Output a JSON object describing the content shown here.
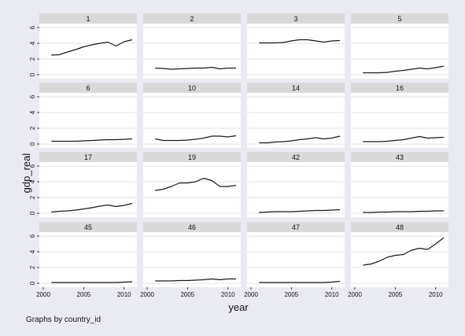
{
  "chart_data": {
    "type": "line",
    "layout": "small-multiples",
    "xlabel": "year",
    "ylabel": "gdp_real",
    "note": "Graphs by country_id",
    "xlim": [
      2000,
      2011
    ],
    "ylim": [
      0,
      6
    ],
    "x_ticks": [
      2000,
      2005,
      2010
    ],
    "y_ticks": [
      0,
      2,
      4,
      6
    ],
    "x": [
      2001,
      2002,
      2003,
      2004,
      2005,
      2006,
      2007,
      2008,
      2009,
      2010,
      2011
    ],
    "panels": [
      {
        "label": "1",
        "values": [
          2.5,
          2.55,
          2.9,
          3.2,
          3.55,
          3.8,
          4.0,
          4.15,
          3.65,
          4.2,
          4.45
        ]
      },
      {
        "label": "2",
        "values": [
          0.85,
          0.8,
          0.7,
          0.75,
          0.8,
          0.85,
          0.85,
          0.95,
          0.75,
          0.85,
          0.85
        ]
      },
      {
        "label": "3",
        "values": [
          4.05,
          4.05,
          4.05,
          4.1,
          4.3,
          4.45,
          4.45,
          4.3,
          4.15,
          4.3,
          4.35
        ]
      },
      {
        "label": "5",
        "values": [
          0.25,
          0.25,
          0.25,
          0.3,
          0.45,
          0.55,
          0.7,
          0.85,
          0.75,
          0.9,
          1.1
        ]
      },
      {
        "label": "6",
        "values": [
          0.35,
          0.35,
          0.35,
          0.35,
          0.4,
          0.45,
          0.5,
          0.55,
          0.55,
          0.6,
          0.65
        ]
      },
      {
        "label": "10",
        "values": [
          0.65,
          0.45,
          0.45,
          0.45,
          0.5,
          0.6,
          0.75,
          1.0,
          1.0,
          0.9,
          1.05
        ]
      },
      {
        "label": "14",
        "values": [
          0.15,
          0.15,
          0.25,
          0.3,
          0.4,
          0.55,
          0.65,
          0.8,
          0.65,
          0.75,
          1.0
        ]
      },
      {
        "label": "16",
        "values": [
          0.3,
          0.3,
          0.3,
          0.35,
          0.45,
          0.55,
          0.75,
          0.95,
          0.75,
          0.8,
          0.85
        ]
      },
      {
        "label": "17",
        "values": [
          0.15,
          0.25,
          0.3,
          0.4,
          0.55,
          0.7,
          0.9,
          1.05,
          0.85,
          1.0,
          1.25
        ]
      },
      {
        "label": "19",
        "values": [
          2.9,
          3.05,
          3.4,
          3.85,
          3.85,
          4.0,
          4.45,
          4.15,
          3.4,
          3.4,
          3.55
        ]
      },
      {
        "label": "42",
        "values": [
          0.1,
          0.15,
          0.2,
          0.2,
          0.2,
          0.25,
          0.3,
          0.35,
          0.35,
          0.4,
          0.45
        ]
      },
      {
        "label": "43",
        "values": [
          0.1,
          0.1,
          0.15,
          0.15,
          0.2,
          0.2,
          0.2,
          0.25,
          0.25,
          0.3,
          0.3
        ]
      },
      {
        "label": "45",
        "values": [
          0.1,
          0.1,
          0.1,
          0.1,
          0.1,
          0.1,
          0.1,
          0.1,
          0.1,
          0.15,
          0.2
        ]
      },
      {
        "label": "46",
        "values": [
          0.3,
          0.3,
          0.3,
          0.35,
          0.35,
          0.4,
          0.45,
          0.55,
          0.45,
          0.55,
          0.55
        ]
      },
      {
        "label": "47",
        "values": [
          0.1,
          0.1,
          0.1,
          0.1,
          0.1,
          0.1,
          0.1,
          0.1,
          0.1,
          0.15,
          0.25
        ]
      },
      {
        "label": "48",
        "values": [
          2.3,
          2.45,
          2.8,
          3.3,
          3.55,
          3.65,
          4.2,
          4.45,
          4.3,
          5.0,
          5.8
        ]
      }
    ]
  },
  "colors": {
    "outer_background": "#eaeaf2",
    "strip_background": "#d9d9d9",
    "panel_background": "#ffffff",
    "grid": "#e6e6e6",
    "line": "#1a1a1a",
    "text": "#111111"
  }
}
